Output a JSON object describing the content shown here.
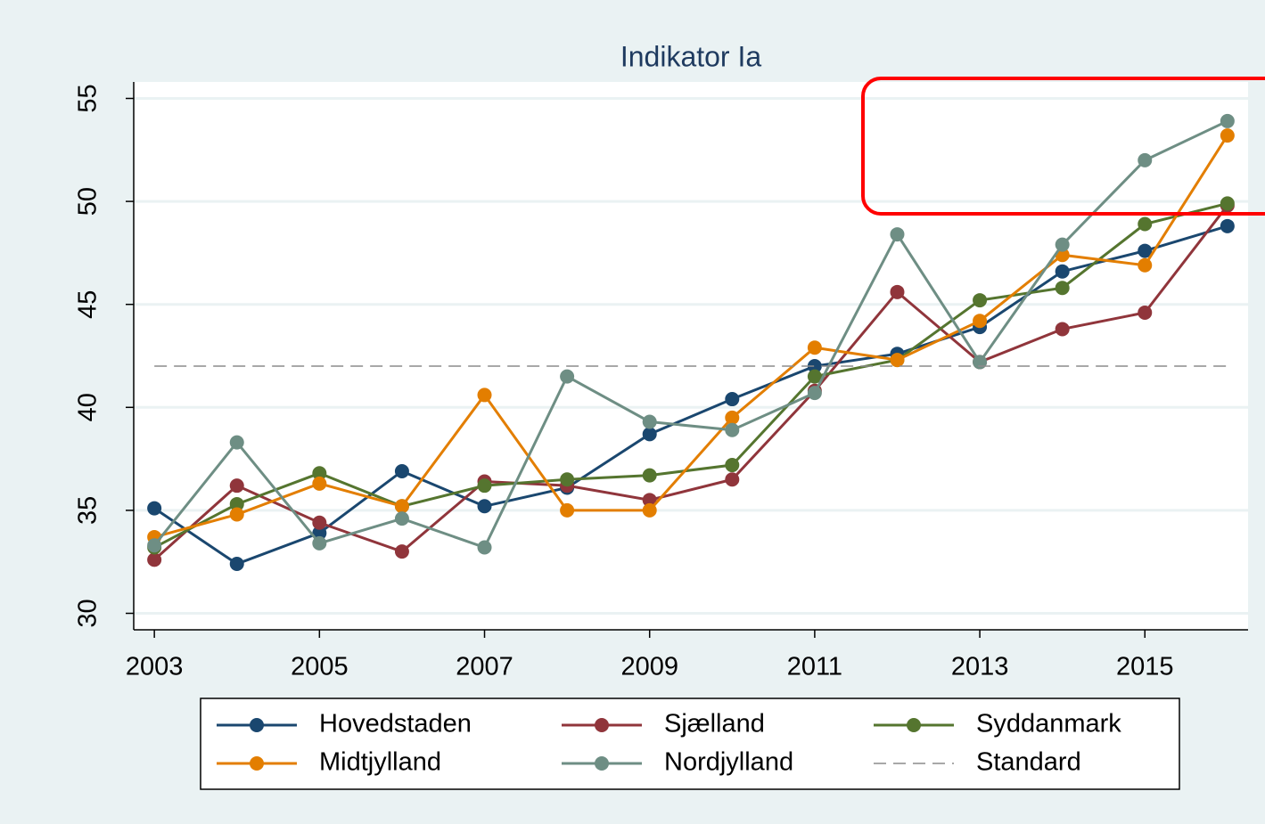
{
  "chart_data": {
    "type": "line",
    "title": "Indikator Ia",
    "x": [
      2003,
      2004,
      2005,
      2006,
      2007,
      2008,
      2009,
      2010,
      2011,
      2012,
      2013,
      2014,
      2015,
      2016
    ],
    "xlim": [
      2002.75,
      2016.25
    ],
    "xticks": [
      2003,
      2005,
      2007,
      2009,
      2011,
      2013,
      2015
    ],
    "ylim": [
      29.2,
      55.8
    ],
    "yticks": [
      30,
      35,
      40,
      45,
      50,
      55
    ],
    "grid": true,
    "series": [
      {
        "name": "Hovedstaden",
        "color": "#1a476f",
        "marker": true,
        "values": [
          35.1,
          32.4,
          33.9,
          36.9,
          35.2,
          36.1,
          38.7,
          40.4,
          42.0,
          42.6,
          43.9,
          46.6,
          47.6,
          48.8
        ]
      },
      {
        "name": "Sjælland",
        "color": "#90353b",
        "marker": true,
        "values": [
          32.6,
          36.2,
          34.4,
          33.0,
          36.4,
          36.2,
          35.5,
          36.5,
          40.8,
          45.6,
          42.2,
          43.8,
          44.6,
          49.8
        ]
      },
      {
        "name": "Syddanmark",
        "color": "#55752f",
        "marker": true,
        "values": [
          33.2,
          35.3,
          36.8,
          35.2,
          36.2,
          36.5,
          36.7,
          37.2,
          41.5,
          42.3,
          45.2,
          45.8,
          48.9,
          49.9
        ]
      },
      {
        "name": "Midtjylland",
        "color": "#e37e00",
        "marker": true,
        "values": [
          33.7,
          34.8,
          36.3,
          35.2,
          40.6,
          35.0,
          35.0,
          39.5,
          42.9,
          42.3,
          44.2,
          47.4,
          46.9,
          53.2
        ]
      },
      {
        "name": "Nordjylland",
        "color": "#6e8e84",
        "marker": true,
        "values": [
          33.3,
          38.3,
          33.4,
          34.6,
          33.2,
          41.5,
          39.3,
          38.9,
          40.7,
          48.4,
          42.2,
          47.9,
          52.0,
          53.9
        ]
      },
      {
        "name": "Standard",
        "color": "#8c8c8c",
        "marker": false,
        "dashed": true,
        "values": [
          42,
          42,
          42,
          42,
          42,
          42,
          42,
          42,
          42,
          42,
          42,
          42,
          42,
          42
        ]
      }
    ]
  }
}
